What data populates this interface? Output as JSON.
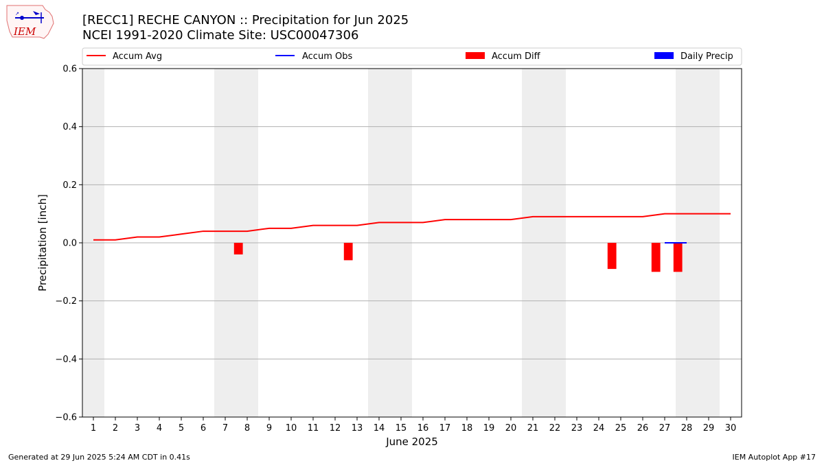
{
  "header": {
    "title_line1": "[RECC1] RECHE CANYON :: Precipitation for Jun 2025",
    "title_line2": "NCEI 1991-2020 Climate Site: USC00047306"
  },
  "logo": {
    "text": "IEM"
  },
  "footer": {
    "left": "Generated at 29 Jun 2025 5:24 AM CDT in 0.41s",
    "right": "IEM Autoplot App #17"
  },
  "chart_data": {
    "type": "line",
    "title": "[RECC1] RECHE CANYON :: Precipitation for Jun 2025",
    "subtitle": "NCEI 1991-2020 Climate Site: USC00047306",
    "xlabel": "June 2025",
    "ylabel": "Precipitation [inch]",
    "ylim": [
      -0.6,
      0.6
    ],
    "xlim": [
      0.5,
      30.5
    ],
    "yticks": [
      -0.6,
      -0.4,
      -0.2,
      0.0,
      0.2,
      0.4,
      0.6
    ],
    "ytick_labels": [
      "−0.6",
      "−0.4",
      "−0.2",
      "0.0",
      "0.2",
      "0.4",
      "0.6"
    ],
    "x": [
      1,
      2,
      3,
      4,
      5,
      6,
      7,
      8,
      9,
      10,
      11,
      12,
      13,
      14,
      15,
      16,
      17,
      18,
      19,
      20,
      21,
      22,
      23,
      24,
      25,
      26,
      27,
      28,
      29,
      30
    ],
    "grid": "horizontal",
    "weekend_shading_days": [
      1,
      7,
      8,
      14,
      15,
      21,
      22,
      28,
      29
    ],
    "legend": {
      "placement": "top",
      "entries": [
        {
          "label": "Accum Avg",
          "kind": "line",
          "color": "#ff0000"
        },
        {
          "label": "Accum Obs",
          "kind": "line",
          "color": "#0000ff"
        },
        {
          "label": "Accum Diff",
          "kind": "bar",
          "color": "#ff0000"
        },
        {
          "label": "Daily Precip",
          "kind": "bar",
          "color": "#0000ff"
        }
      ]
    },
    "series": [
      {
        "name": "Accum Avg",
        "kind": "line",
        "color": "#ff0000",
        "x": [
          1,
          2,
          3,
          4,
          5,
          6,
          7,
          8,
          9,
          10,
          11,
          12,
          13,
          14,
          15,
          16,
          17,
          18,
          19,
          20,
          21,
          22,
          23,
          24,
          25,
          26,
          27,
          28,
          29,
          30
        ],
        "values": [
          0.01,
          0.01,
          0.02,
          0.02,
          0.03,
          0.04,
          0.04,
          0.04,
          0.05,
          0.05,
          0.06,
          0.06,
          0.06,
          0.07,
          0.07,
          0.07,
          0.08,
          0.08,
          0.08,
          0.08,
          0.09,
          0.09,
          0.09,
          0.09,
          0.09,
          0.09,
          0.1,
          0.1,
          0.1,
          0.1
        ]
      },
      {
        "name": "Accum Obs",
        "kind": "line",
        "color": "#0000ff",
        "x": [
          27,
          28
        ],
        "values": [
          0.0,
          0.0
        ]
      },
      {
        "name": "Accum Diff",
        "kind": "bar",
        "color": "#ff0000",
        "x": [
          8,
          13,
          25,
          27,
          28
        ],
        "values": [
          -0.04,
          -0.06,
          -0.09,
          -0.1,
          -0.1
        ]
      },
      {
        "name": "Daily Precip",
        "kind": "bar",
        "color": "#0000ff",
        "x": [],
        "values": []
      }
    ]
  }
}
